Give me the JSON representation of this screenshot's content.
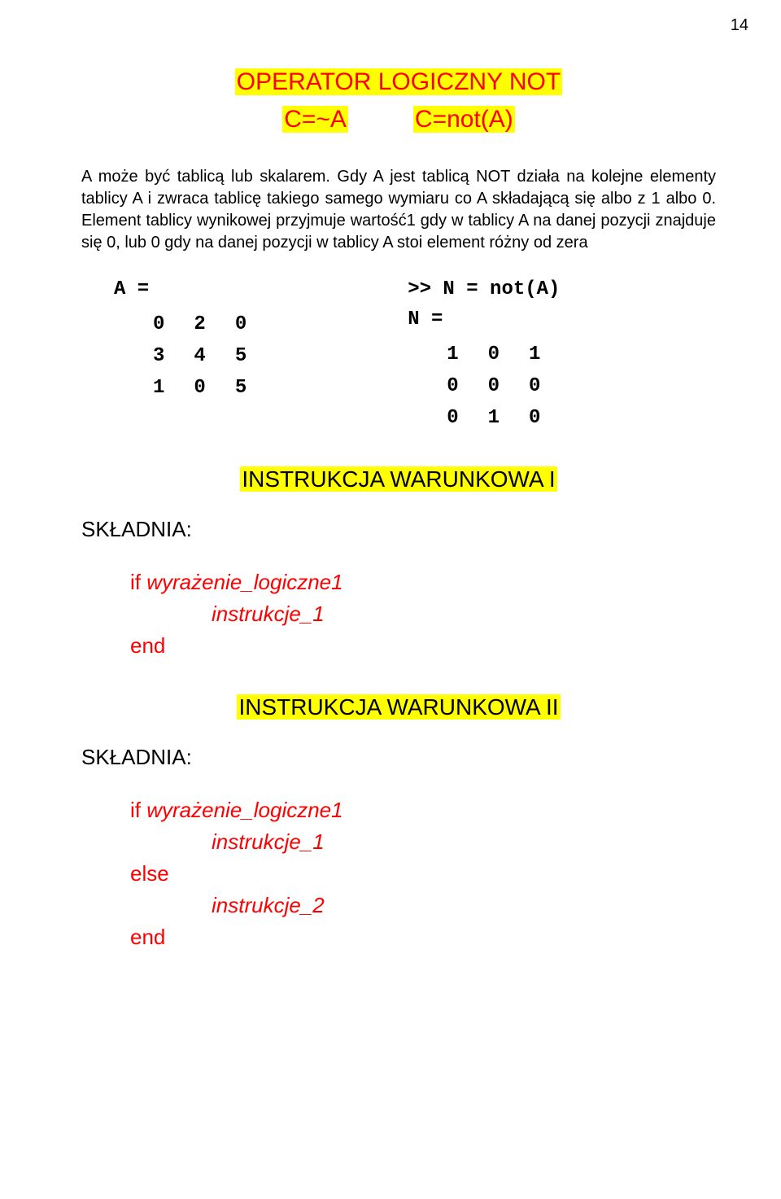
{
  "page_number": "14",
  "title": {
    "line1": "OPERATOR LOGICZNY  NOT",
    "line2_left": "C=~A",
    "line2_right": "C=not(A)"
  },
  "paragraph1": "A może być tablicą lub skalarem. Gdy A jest tablicą NOT działa na kolejne elementy tablicy A i zwraca tablicę takiego samego wymiaru co A składającą się albo z 1 albo 0.  Element tablicy wynikowej przyjmuje wartość1 gdy  w tablicy A na danej pozycji znajduje się 0,  lub 0 gdy na danej pozycji w tablicy A stoi element różny od zera",
  "matrixA": {
    "label": "A =",
    "rows": [
      [
        "0",
        "2",
        "0"
      ],
      [
        "3",
        "4",
        "5"
      ],
      [
        "1",
        "0",
        "5"
      ]
    ]
  },
  "matrixN": {
    "label1": ">> N = not(A)",
    "label2": "N =",
    "rows": [
      [
        "1",
        "0",
        "1"
      ],
      [
        "0",
        "0",
        "0"
      ],
      [
        "0",
        "1",
        "0"
      ]
    ]
  },
  "heading1": "INSTRUKCJA WARUNKOWA I",
  "skladnia_label": "SKŁADNIA:",
  "code1": {
    "l1_kw": "if  ",
    "l1_expr": "wyrażenie_logiczne1",
    "l2": "instrukcje_1",
    "l3": "end"
  },
  "heading2": "INSTRUKCJA WARUNKOWA II",
  "code2": {
    "l1_kw": "if  ",
    "l1_expr": "wyrażenie_logiczne1",
    "l2": "instrukcje_1",
    "l3": "else",
    "l4": "instrukcje_2",
    "l5": "end"
  },
  "colors": {
    "highlight_bg": "#ffff00",
    "red": "#ff0000",
    "black": "#000000",
    "background": "#ffffff"
  }
}
